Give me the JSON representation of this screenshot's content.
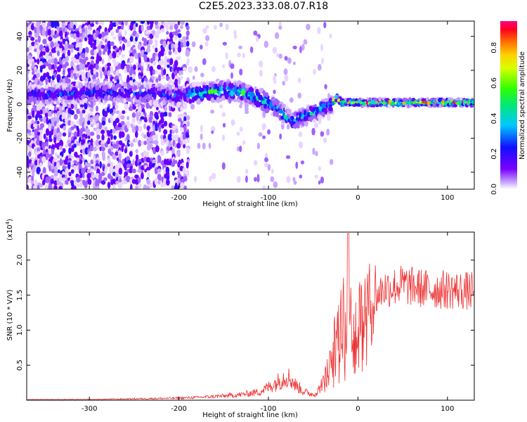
{
  "title": "C2E5.2023.333.08.07.R18",
  "chart_data": [
    {
      "type": "heatmap",
      "xlabel": "Height of straight line (km)",
      "ylabel": "Frequency (Hz)",
      "xlim": [
        -370,
        130
      ],
      "ylim": [
        -50,
        49
      ],
      "xticks": [
        -300,
        -200,
        -100,
        0,
        100
      ],
      "yticks": [
        -40,
        -20,
        0,
        20,
        40
      ],
      "colorbar": {
        "label": "Normalized spectral amplitude",
        "range": [
          0.0,
          0.95
        ],
        "ticks": [
          "0.0",
          "0.2",
          "0.4",
          "0.6",
          "0.8"
        ],
        "colormap": "rainbow (violet - blue - cyan - green - yellow - orange - red - magenta)"
      },
      "ridge": {
        "x": [
          -370,
          -300,
          -250,
          -200,
          -170,
          -150,
          -130,
          -110,
          -90,
          -75,
          -60,
          -50,
          -40,
          -30,
          -25,
          -20,
          -10,
          0,
          20,
          50,
          80,
          100,
          130
        ],
        "frequency": [
          5,
          7,
          7,
          5,
          7,
          8,
          7,
          3,
          -3,
          -10,
          -7,
          -5,
          -2,
          0,
          4,
          1,
          1,
          1,
          1,
          1,
          1,
          1,
          1
        ]
      },
      "grid": false
    },
    {
      "type": "line",
      "xlabel": "Height of straight line (km)",
      "ylabel": "SNR (10 * V/V)",
      "y_multiplier": "(x10",
      "y_multiplier_exp": "4",
      "y_multiplier_close": ")",
      "xlim": [
        -370,
        130
      ],
      "ylim": [
        0,
        2.4
      ],
      "xticks": [
        -300,
        -200,
        -100,
        0,
        100
      ],
      "yticks": [
        "0.5",
        "1.0",
        "1.5",
        "2.0"
      ],
      "color": "#ee3333",
      "series": [
        {
          "x": [
            -370,
            -300,
            -250,
            -200,
            -180,
            -150,
            -130,
            -110,
            -95,
            -85,
            -80,
            -75,
            -70,
            -60,
            -50,
            -45,
            -40,
            -35,
            -30,
            -25,
            -20,
            -15,
            -12,
            -10,
            -5,
            0,
            5,
            10,
            20,
            25,
            30,
            40,
            50,
            60,
            80,
            100,
            130
          ],
          "values": [
            0.01,
            0.01,
            0.02,
            0.03,
            0.04,
            0.06,
            0.08,
            0.12,
            0.22,
            0.3,
            0.35,
            0.3,
            0.22,
            0.12,
            0.08,
            0.12,
            0.25,
            0.4,
            0.6,
            0.9,
            1.1,
            1.25,
            1.3,
            1.2,
            1.15,
            1.2,
            1.3,
            1.35,
            1.45,
            1.55,
            1.6,
            1.62,
            1.65,
            1.62,
            1.58,
            1.58,
            1.55
          ]
        }
      ],
      "spike": {
        "x": -11,
        "y": 2.38
      },
      "grid": false
    }
  ]
}
